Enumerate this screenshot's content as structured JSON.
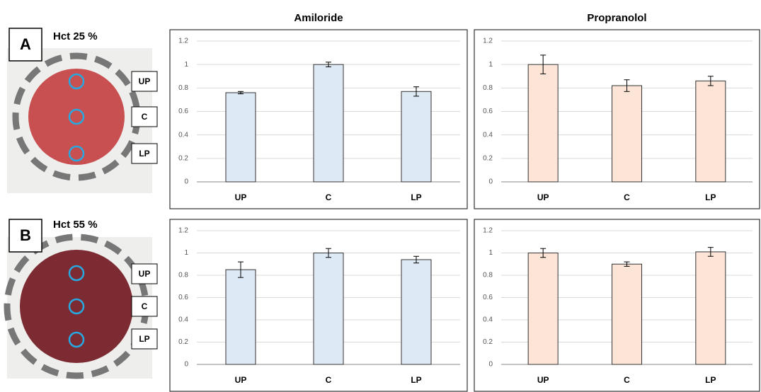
{
  "panels": [
    {
      "letter": "A",
      "label": "Hct 25 %",
      "spots": [
        "UP",
        "C",
        "LP"
      ]
    },
    {
      "letter": "B",
      "label": "Hct 55 %",
      "spots": [
        "UP",
        "C",
        "LP"
      ]
    }
  ],
  "chart_data": [
    {
      "type": "bar",
      "title": "Amiloride",
      "categories": [
        "UP",
        "C",
        "LP"
      ],
      "series": [
        {
          "values": [
            0.76,
            1.0,
            0.77
          ],
          "errors": [
            0.01,
            0.02,
            0.04
          ],
          "color": "#ddeaf6"
        }
      ],
      "ylim": [
        0,
        1.2
      ],
      "yticks": [
        0,
        0.2,
        0.4,
        0.6,
        0.8,
        1,
        1.2
      ],
      "grid": true
    },
    {
      "type": "bar",
      "title": "Propranolol",
      "categories": [
        "UP",
        "C",
        "LP"
      ],
      "series": [
        {
          "values": [
            1.0,
            0.82,
            0.86
          ],
          "errors": [
            0.08,
            0.05,
            0.04
          ],
          "color": "#fce4d6"
        }
      ],
      "ylim": [
        0,
        1.2
      ],
      "yticks": [
        0,
        0.2,
        0.4,
        0.6,
        0.8,
        1,
        1.2
      ],
      "grid": true
    },
    {
      "type": "bar",
      "categories": [
        "UP",
        "C",
        "LP"
      ],
      "series": [
        {
          "values": [
            0.85,
            1.0,
            0.94
          ],
          "errors": [
            0.07,
            0.04,
            0.03
          ],
          "color": "#ddeaf6"
        }
      ],
      "ylim": [
        0,
        1.2
      ],
      "yticks": [
        0,
        0.2,
        0.4,
        0.6,
        0.8,
        1,
        1.2
      ],
      "grid": true
    },
    {
      "type": "bar",
      "categories": [
        "UP",
        "C",
        "LP"
      ],
      "series": [
        {
          "values": [
            1.0,
            0.9,
            1.01
          ],
          "errors": [
            0.04,
            0.02,
            0.04
          ],
          "color": "#fce4d6"
        }
      ],
      "ylim": [
        0,
        1.2
      ],
      "yticks": [
        0,
        0.2,
        0.4,
        0.6,
        0.8,
        1,
        1.2
      ],
      "grid": true
    }
  ]
}
